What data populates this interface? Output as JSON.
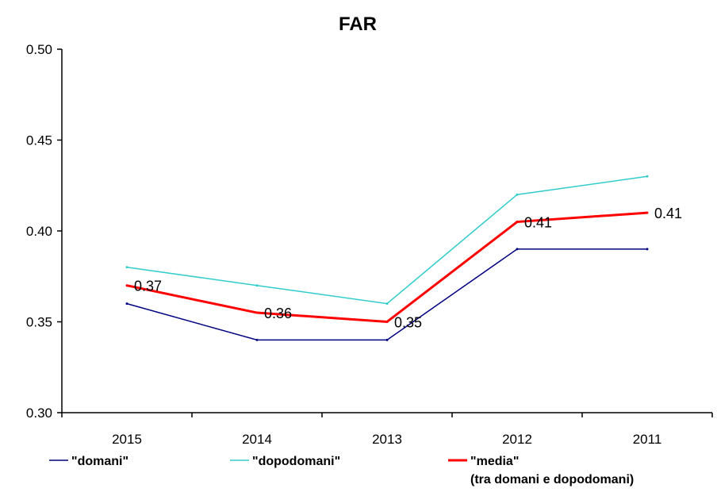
{
  "chart_data": {
    "type": "line",
    "title": "FAR",
    "xlabel": "",
    "ylabel": "",
    "categories": [
      "2015",
      "2014",
      "2013",
      "2012",
      "2011"
    ],
    "ylim": [
      0.3,
      0.5
    ],
    "yticks": [
      "0.30",
      "0.35",
      "0.40",
      "0.45",
      "0.50"
    ],
    "grid": false,
    "legend_position": "bottom",
    "series": [
      {
        "name": "\"domani\"",
        "color": "#000080",
        "values": [
          0.36,
          0.34,
          0.34,
          0.39,
          0.39
        ]
      },
      {
        "name": "\"dopodomani\"",
        "color": "#33CCCC",
        "values": [
          0.38,
          0.37,
          0.36,
          0.42,
          0.43
        ]
      },
      {
        "name": "\"media\"",
        "name_line2": "(tra domani e dopodomani)",
        "color": "#FF0000",
        "values": [
          0.37,
          0.355,
          0.35,
          0.405,
          0.41
        ],
        "data_labels": [
          "0.37",
          "0.36",
          "0.35",
          "0.41",
          "0.41"
        ]
      }
    ]
  }
}
